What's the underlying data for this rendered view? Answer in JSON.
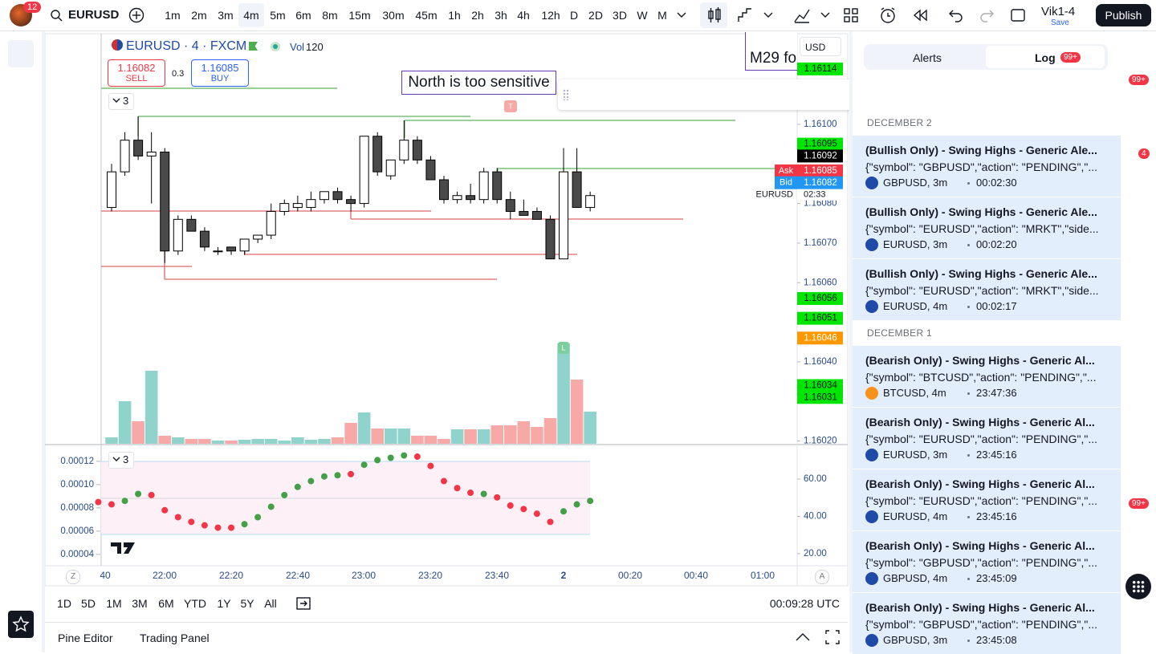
{
  "header": {
    "badge": "12",
    "symbol": "EURUSD",
    "intervals": [
      "1m",
      "2m",
      "3m",
      "4m",
      "5m",
      "6m",
      "8m",
      "15m",
      "30m",
      "45m",
      "1h",
      "2h",
      "3h",
      "4h",
      "12h",
      "D",
      "2D",
      "3D",
      "W",
      "M"
    ],
    "active_interval": "4m",
    "layout_name": "Vik1-4",
    "save": "Save",
    "publish": "Publish"
  },
  "chart": {
    "type": "candlestick",
    "legend": {
      "title": "EURUSD · 4 · FXCM",
      "vol_label": "Vol",
      "vol_value": "120",
      "sell_price": "1.16082",
      "sell": "SELL",
      "spread": "0.3",
      "buy_price": "1.16085",
      "buy": "BUY",
      "collapse_count": "3"
    },
    "annotations": [
      "North is too sensitive",
      "M29 fo"
    ],
    "currency": "USD",
    "symbol_tag": "EURUSD",
    "countdown": "02:33",
    "markers": [
      "T",
      "L"
    ],
    "axis_buttons": [
      "Z",
      "A"
    ],
    "ylim": [
      1.160193,
      1.161229
    ],
    "yticks": [
      {
        "value": 1.161,
        "label": "1.16100"
      },
      {
        "value": 1.1608,
        "label": "1.16080"
      },
      {
        "value": 1.1607,
        "label": "1.16070"
      },
      {
        "value": 1.1606,
        "label": "1.16060"
      },
      {
        "value": 1.1604,
        "label": "1.16040"
      },
      {
        "value": 1.1602,
        "label": "1.16020"
      }
    ],
    "price_labels": [
      {
        "value": 1.16114,
        "label": "1.16114",
        "color": "#00e600"
      },
      {
        "value": 1.16095,
        "label": "1.16095",
        "color": "#00e600"
      },
      {
        "value": 1.16092,
        "label": "1.16092",
        "color": "#000000"
      },
      {
        "value": 1.16085,
        "label": "1.16085",
        "color": "#f23645",
        "tag": "Ask"
      },
      {
        "value": 1.16082,
        "label": "1.16082",
        "color": "#2196f3",
        "tag": "Bid"
      },
      {
        "value": 1.16056,
        "label": "1.16056",
        "color": "#00e600"
      },
      {
        "value": 1.16051,
        "label": "1.16051",
        "color": "#00e600"
      },
      {
        "value": 1.16046,
        "label": "1.16046",
        "color": "#ff9800"
      },
      {
        "value": 1.16034,
        "label": "1.16034",
        "color": "#00e600"
      },
      {
        "value": 1.16031,
        "label": "1.16031",
        "color": "#00e600"
      }
    ],
    "candles": {
      "up_color": "#ffffff",
      "down_color": "#4a4a4a",
      "border_color": "#000000",
      "open": [
        1.16079,
        1.16088,
        1.16096,
        1.16092,
        1.16093,
        1.16068,
        1.16076,
        1.16073,
        1.16068,
        1.16069,
        1.16068,
        1.16071,
        1.16072,
        1.16078,
        1.16079,
        1.16079,
        1.16081,
        1.16083,
        1.16081,
        1.1608,
        1.16097,
        1.16087,
        1.16091,
        1.16096,
        1.16091,
        1.16086,
        1.16081,
        1.16082,
        1.16081,
        1.16088,
        1.16081,
        1.16078,
        1.16078,
        1.16076,
        1.16066,
        1.16088,
        1.16079
      ],
      "high": [
        1.1609,
        1.16098,
        1.16102,
        1.16098,
        1.16094,
        1.16077,
        1.16077,
        1.16074,
        1.16069,
        1.16069,
        1.16071,
        1.16072,
        1.1608,
        1.16081,
        1.16082,
        1.16083,
        1.16083,
        1.16084,
        1.16082,
        1.16097,
        1.16098,
        1.16091,
        1.16101,
        1.16097,
        1.16092,
        1.16087,
        1.16083,
        1.16085,
        1.16089,
        1.16089,
        1.16083,
        1.16081,
        1.16079,
        1.16077,
        1.16094,
        1.16094,
        1.16083
      ],
      "low": [
        1.16078,
        1.16087,
        1.16091,
        1.1608,
        1.16065,
        1.16067,
        1.16073,
        1.16068,
        1.16067,
        1.16067,
        1.16067,
        1.1607,
        1.16071,
        1.16077,
        1.16078,
        1.16078,
        1.1608,
        1.1608,
        1.16078,
        1.16079,
        1.16087,
        1.16086,
        1.1609,
        1.1609,
        1.16086,
        1.1608,
        1.1608,
        1.1608,
        1.1608,
        1.1608,
        1.16076,
        1.16077,
        1.16076,
        1.16066,
        1.16066,
        1.16079,
        1.16078
      ],
      "close": [
        1.16088,
        1.16096,
        1.16092,
        1.16093,
        1.16068,
        1.16076,
        1.16073,
        1.16069,
        1.16068,
        1.16068,
        1.16071,
        1.16072,
        1.16078,
        1.1608,
        1.1608,
        1.16081,
        1.16083,
        1.16081,
        1.1608,
        1.16097,
        1.16088,
        1.16091,
        1.16096,
        1.16091,
        1.16086,
        1.16081,
        1.16082,
        1.16081,
        1.16088,
        1.16081,
        1.16078,
        1.16077,
        1.16076,
        1.16066,
        1.16088,
        1.16079,
        1.16082
      ]
    },
    "volume": {
      "up_color": "#8fd3cc",
      "down_color": "#f7a9a8",
      "values": [
        24,
        159,
        84,
        273,
        30,
        24,
        18,
        18,
        12,
        12,
        15,
        18,
        18,
        12,
        24,
        15,
        18,
        24,
        78,
        117,
        57,
        57,
        57,
        30,
        30,
        18,
        54,
        54,
        54,
        69,
        69,
        84,
        63,
        96,
        375,
        240,
        120
      ]
    },
    "time_labels": [
      "40",
      "22:00",
      "22:20",
      "22:40",
      "23:00",
      "23:20",
      "23:40",
      "2",
      "00:20",
      "00:40",
      "01:00"
    ]
  },
  "indicator": {
    "type": "scatter",
    "collapse_count": "3",
    "values": [
      8.5e-05,
      8.3e-05,
      8.6e-05,
      9.2e-05,
      9.1e-05,
      7.8e-05,
      7.2e-05,
      6.8e-05,
      6.5e-05,
      6.3e-05,
      6.3e-05,
      6.6e-05,
      7.2e-05,
      8.1e-05,
      9.1e-05,
      9.8e-05,
      0.000103,
      0.000107,
      0.000108,
      0.000109,
      0.000117,
      0.000121,
      0.000123,
      0.000125,
      0.000124,
      0.000116,
      0.000103,
      9.7e-05,
      9.3e-05,
      9.2e-05,
      8.9e-05,
      8.2e-05,
      7.9e-05,
      7.5e-05,
      6.8e-05,
      7.7e-05,
      8.3e-05,
      8.6e-05
    ],
    "colors": [
      "#f23645",
      "#f23645",
      "#43a047",
      "#43a047",
      "#f23645",
      "#f23645",
      "#f23645",
      "#f23645",
      "#f23645",
      "#f23645",
      "#f23645",
      "#43a047",
      "#43a047",
      "#43a047",
      "#43a047",
      "#43a047",
      "#43a047",
      "#43a047",
      "#43a047",
      "#f23645",
      "#43a047",
      "#43a047",
      "#43a047",
      "#43a047",
      "#f23645",
      "#f23645",
      "#f23645",
      "#f23645",
      "#f23645",
      "#43a047",
      "#f23645",
      "#f23645",
      "#f23645",
      "#f23645",
      "#f23645",
      "#43a047",
      "#43a047",
      "#43a047"
    ],
    "ylim": [
      3.1e-05,
      0.000133
    ],
    "yticks": [
      0.00012,
      {
        "value": 0.0001,
        "label": "0.00010"
      },
      8e-05,
      6e-05,
      4e-05
    ],
    "y2lim": [
      14,
      77.6
    ],
    "y2ticks": [
      {
        "value": 60,
        "label": "60.00"
      },
      {
        "value": 40,
        "label": "40.00"
      },
      {
        "value": 20,
        "label": "20.00"
      }
    ]
  },
  "footer": {
    "ranges": [
      "1D",
      "5D",
      "1M",
      "3M",
      "6M",
      "YTD",
      "1Y",
      "5Y",
      "All"
    ],
    "clock": "00:09:28 UTC",
    "tabs": [
      "Pine Editor",
      "Trading Panel"
    ]
  },
  "alerts_panel": {
    "tabs": [
      "Alerts",
      "Log"
    ],
    "log_badge": "99+",
    "groups": [
      {
        "date": "DECEMBER 2",
        "items": [
          {
            "title": "(Bullish Only) - Swing Highs - Generic Ale...",
            "message": "{\"symbol\": \"GBPUSD\",\"action\": \"PENDING\",\"...",
            "source": "GBPUSD, 3m",
            "time": "00:02:30",
            "icon_color": "#1f4aa8"
          },
          {
            "title": "(Bullish Only) - Swing Highs - Generic Ale...",
            "message": "{\"symbol\": \"EURUSD\",\"action\": \"MRKT\",\"side...",
            "source": "EURUSD, 3m",
            "time": "00:02:20",
            "icon_color": "#1f4aa8"
          },
          {
            "title": "(Bullish Only) - Swing Highs - Generic Ale...",
            "message": "{\"symbol\": \"EURUSD\",\"action\": \"MRKT\",\"side...",
            "source": "EURUSD, 4m",
            "time": "00:02:17",
            "icon_color": "#1f4aa8"
          }
        ]
      },
      {
        "date": "DECEMBER 1",
        "items": [
          {
            "title": "(Bearish Only) - Swing Highs - Generic Al...",
            "message": "{\"symbol\": \"BTCUSD\",\"action\": \"PENDING\",\"...",
            "source": "BTCUSD, 4m",
            "time": "23:47:36",
            "icon_color": "#f7931a"
          },
          {
            "title": "(Bearish Only) - Swing Highs - Generic Al...",
            "message": "{\"symbol\": \"EURUSD\",\"action\": \"PENDING\",\"...",
            "source": "EURUSD, 3m",
            "time": "23:45:16",
            "icon_color": "#1f4aa8"
          },
          {
            "title": "(Bearish Only) - Swing Highs - Generic Al...",
            "message": "{\"symbol\": \"EURUSD\",\"action\": \"PENDING\",\"...",
            "source": "EURUSD, 4m",
            "time": "23:45:16",
            "icon_color": "#1f4aa8"
          },
          {
            "title": "(Bearish Only) - Swing Highs - Generic Al...",
            "message": "{\"symbol\": \"GBPUSD\",\"action\": \"PENDING\",\"...",
            "source": "GBPUSD, 4m",
            "time": "23:45:09",
            "icon_color": "#1f4aa8"
          },
          {
            "title": "(Bearish Only) - Swing Highs - Generic Al...",
            "message": "{\"symbol\": \"GBPUSD\",\"action\": \"PENDING\",\"...",
            "source": "GBPUSD, 3m",
            "time": "23:45:08",
            "icon_color": "#1f4aa8"
          }
        ]
      }
    ]
  },
  "right_bar": {
    "badges": [
      "99+",
      "4",
      "99+"
    ]
  }
}
